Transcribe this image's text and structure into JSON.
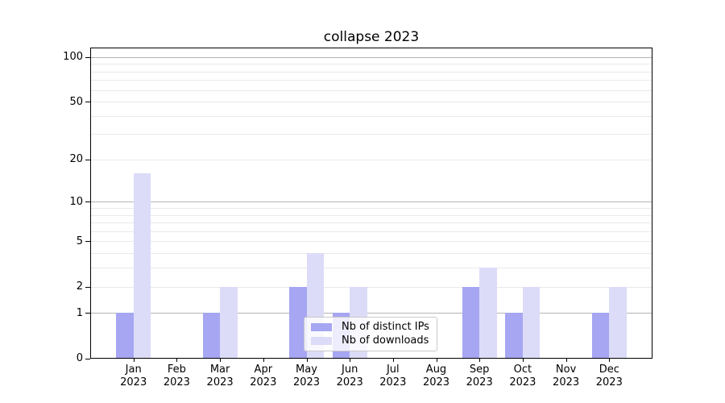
{
  "title": "collapse 2023",
  "chart_data": {
    "type": "bar",
    "title": "collapse 2023",
    "categories": [
      "Jan",
      "Feb",
      "Mar",
      "Apr",
      "May",
      "Jun",
      "Jul",
      "Aug",
      "Sep",
      "Oct",
      "Nov",
      "Dec"
    ],
    "x_year": "2023",
    "series": [
      {
        "name": "Nb of distinct IPs",
        "color": "#a6a6f2",
        "values": [
          1,
          0,
          1,
          0,
          2,
          1,
          0,
          0,
          2,
          1,
          0,
          1
        ]
      },
      {
        "name": "Nb of downloads",
        "color": "#dcdcf8",
        "values": [
          16,
          0,
          2,
          0,
          4,
          2,
          0,
          0,
          3,
          2,
          0,
          2
        ]
      }
    ],
    "yscale": "log1p",
    "ylim": [
      0,
      115
    ],
    "y_tick_values": [
      0,
      1,
      2,
      5,
      10,
      20,
      50,
      100
    ],
    "grid_major": [
      1,
      10,
      100
    ],
    "grid_minor": [
      2,
      3,
      4,
      5,
      6,
      7,
      8,
      9,
      20,
      30,
      40,
      50,
      60,
      70,
      80,
      90
    ],
    "legend_position": "lower center",
    "colors": {
      "grid_major": "#b4b4b4",
      "grid_minor": "#e9e9e9",
      "spine": "#000000",
      "text": "#000000",
      "background": "#ffffff"
    }
  }
}
